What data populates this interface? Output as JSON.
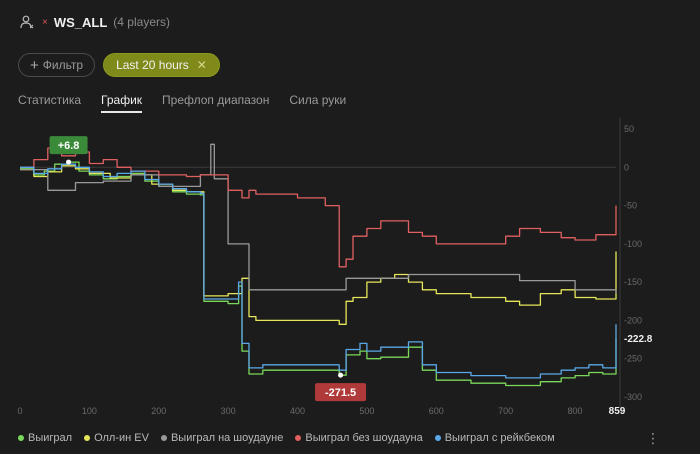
{
  "header": {
    "player_icon": "user-icon",
    "table_name": "WS_ALL",
    "players": "(4 players)"
  },
  "filters": {
    "filter_label": "Фильтр",
    "time_label": "Last 20 hours"
  },
  "tabs": [
    {
      "label": "Статистика",
      "active": false
    },
    {
      "label": "График",
      "active": true
    },
    {
      "label": "Префлоп диапазон",
      "active": false
    },
    {
      "label": "Сила руки",
      "active": false
    }
  ],
  "chart_data": {
    "type": "line",
    "x_ticks": [
      0,
      100,
      200,
      300,
      400,
      500,
      600,
      700,
      800
    ],
    "x_max_label": "859",
    "x_range": [
      0,
      859
    ],
    "y_ticks": [
      50,
      0,
      -50,
      -100,
      -150,
      -200,
      -250,
      -300
    ],
    "y_range": [
      -310,
      55
    ],
    "grid": false,
    "legend_position": "bottom",
    "annotations": [
      {
        "text": "+6.8",
        "x": 70,
        "y": 6.8,
        "color": "#3a8a3a"
      },
      {
        "text": "-271.5",
        "x": 462,
        "y": -271.5,
        "color": "#b03a3a"
      }
    ],
    "end_value_label": "-222.8",
    "series": [
      {
        "name": "Выиграл",
        "color": "#7ad85a",
        "points": [
          [
            0,
            -2
          ],
          [
            20,
            -10
          ],
          [
            35,
            -5
          ],
          [
            50,
            4
          ],
          [
            70,
            6.8
          ],
          [
            85,
            -5
          ],
          [
            100,
            -10
          ],
          [
            120,
            -15
          ],
          [
            140,
            -12
          ],
          [
            160,
            -8
          ],
          [
            180,
            -18
          ],
          [
            200,
            -25
          ],
          [
            220,
            -32
          ],
          [
            240,
            -35
          ],
          [
            260,
            -36
          ],
          [
            265,
            -175
          ],
          [
            300,
            -178
          ],
          [
            315,
            -155
          ],
          [
            320,
            -240
          ],
          [
            330,
            -270
          ],
          [
            340,
            -270
          ],
          [
            350,
            -265
          ],
          [
            460,
            -271.5
          ],
          [
            470,
            -245
          ],
          [
            490,
            -240
          ],
          [
            500,
            -250
          ],
          [
            520,
            -248
          ],
          [
            560,
            -235
          ],
          [
            580,
            -265
          ],
          [
            600,
            -278
          ],
          [
            650,
            -282
          ],
          [
            700,
            -285
          ],
          [
            750,
            -280
          ],
          [
            780,
            -275
          ],
          [
            800,
            -272
          ],
          [
            820,
            -268
          ],
          [
            840,
            -270
          ],
          [
            859,
            -222.8
          ]
        ]
      },
      {
        "name": "Олл-ин EV",
        "color": "#e6e65a",
        "points": [
          [
            0,
            -3
          ],
          [
            20,
            -12
          ],
          [
            40,
            -6
          ],
          [
            60,
            2
          ],
          [
            80,
            -2
          ],
          [
            100,
            -8
          ],
          [
            130,
            -14
          ],
          [
            160,
            -10
          ],
          [
            190,
            -22
          ],
          [
            220,
            -30
          ],
          [
            240,
            -32
          ],
          [
            265,
            -168
          ],
          [
            300,
            -165
          ],
          [
            320,
            -145
          ],
          [
            330,
            -195
          ],
          [
            340,
            -200
          ],
          [
            460,
            -205
          ],
          [
            470,
            -175
          ],
          [
            480,
            -170
          ],
          [
            500,
            -150
          ],
          [
            520,
            -145
          ],
          [
            540,
            -140
          ],
          [
            560,
            -150
          ],
          [
            580,
            -160
          ],
          [
            600,
            -165
          ],
          [
            650,
            -170
          ],
          [
            700,
            -175
          ],
          [
            720,
            -180
          ],
          [
            750,
            -165
          ],
          [
            780,
            -160
          ],
          [
            800,
            -170
          ],
          [
            830,
            -172
          ],
          [
            859,
            -110
          ]
        ]
      },
      {
        "name": "Выиграл на шоудауне",
        "color": "#9a9a9a",
        "points": [
          [
            0,
            -3
          ],
          [
            40,
            -30
          ],
          [
            80,
            -20
          ],
          [
            120,
            -18
          ],
          [
            160,
            -10
          ],
          [
            200,
            -25
          ],
          [
            260,
            -10
          ],
          [
            275,
            30
          ],
          [
            280,
            -15
          ],
          [
            300,
            -100
          ],
          [
            320,
            -100
          ],
          [
            330,
            -160
          ],
          [
            340,
            -160
          ],
          [
            460,
            -160
          ],
          [
            470,
            -145
          ],
          [
            500,
            -145
          ],
          [
            560,
            -140
          ],
          [
            600,
            -140
          ],
          [
            650,
            -140
          ],
          [
            700,
            -140
          ],
          [
            720,
            -148
          ],
          [
            780,
            -148
          ],
          [
            800,
            -160
          ],
          [
            859,
            -165
          ]
        ]
      },
      {
        "name": "Выиграл без шоудауна",
        "color": "#e06060",
        "points": [
          [
            0,
            0
          ],
          [
            20,
            10
          ],
          [
            40,
            25
          ],
          [
            60,
            15
          ],
          [
            80,
            20
          ],
          [
            100,
            5
          ],
          [
            120,
            10
          ],
          [
            140,
            0
          ],
          [
            160,
            -5
          ],
          [
            200,
            -10
          ],
          [
            240,
            -12
          ],
          [
            260,
            -10
          ],
          [
            300,
            -30
          ],
          [
            320,
            -40
          ],
          [
            330,
            -30
          ],
          [
            340,
            -35
          ],
          [
            400,
            -40
          ],
          [
            440,
            -50
          ],
          [
            460,
            -130
          ],
          [
            470,
            -120
          ],
          [
            480,
            -90
          ],
          [
            500,
            -80
          ],
          [
            520,
            -70
          ],
          [
            560,
            -85
          ],
          [
            580,
            -90
          ],
          [
            600,
            -100
          ],
          [
            650,
            -100
          ],
          [
            700,
            -90
          ],
          [
            720,
            -80
          ],
          [
            750,
            -85
          ],
          [
            780,
            -92
          ],
          [
            800,
            -95
          ],
          [
            830,
            -88
          ],
          [
            859,
            -50
          ]
        ]
      },
      {
        "name": "Выиграл с рейкбеком",
        "color": "#5aa8e8",
        "points": [
          [
            0,
            0
          ],
          [
            20,
            -8
          ],
          [
            40,
            -2
          ],
          [
            60,
            4
          ],
          [
            80,
            0
          ],
          [
            100,
            -6
          ],
          [
            120,
            -12
          ],
          [
            140,
            -8
          ],
          [
            160,
            -5
          ],
          [
            180,
            -16
          ],
          [
            200,
            -22
          ],
          [
            220,
            -28
          ],
          [
            240,
            -32
          ],
          [
            260,
            -34
          ],
          [
            265,
            -172
          ],
          [
            300,
            -172
          ],
          [
            315,
            -150
          ],
          [
            320,
            -230
          ],
          [
            330,
            -262
          ],
          [
            340,
            -262
          ],
          [
            350,
            -258
          ],
          [
            460,
            -265
          ],
          [
            470,
            -238
          ],
          [
            490,
            -230
          ],
          [
            500,
            -240
          ],
          [
            520,
            -235
          ],
          [
            560,
            -228
          ],
          [
            580,
            -258
          ],
          [
            600,
            -268
          ],
          [
            650,
            -272
          ],
          [
            700,
            -275
          ],
          [
            750,
            -270
          ],
          [
            780,
            -265
          ],
          [
            800,
            -262
          ],
          [
            820,
            -258
          ],
          [
            840,
            -262
          ],
          [
            859,
            -205
          ]
        ]
      }
    ]
  },
  "legend": [
    {
      "label": "Выиграл",
      "color": "#7ad85a"
    },
    {
      "label": "Олл-ин EV",
      "color": "#e6e65a"
    },
    {
      "label": "Выиграл на шоудауне",
      "color": "#9a9a9a"
    },
    {
      "label": "Выиграл без шоудауна",
      "color": "#e06060"
    },
    {
      "label": "Выиграл с рейкбеком",
      "color": "#5aa8e8"
    }
  ],
  "menu_icon": "kebab-menu-icon"
}
